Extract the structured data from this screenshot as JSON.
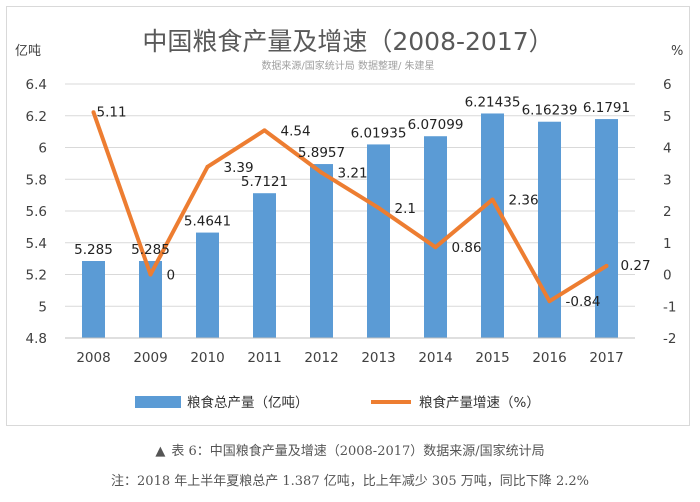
{
  "chart_data": {
    "type": "bar+line",
    "title": "中国粮食产量及增速（2008-2017）",
    "subtitle": "数据来源/国家统计局 数据整理/ 朱建星",
    "left_unit": "亿吨",
    "right_unit": "%",
    "categories": [
      "2008",
      "2009",
      "2010",
      "2011",
      "2012",
      "2013",
      "2014",
      "2015",
      "2016",
      "2017"
    ],
    "bar_series": {
      "name": "粮食总产量（亿吨）",
      "color": "#5b9bd5",
      "values": [
        5.285,
        5.285,
        5.4641,
        5.7121,
        5.8957,
        6.01935,
        6.07099,
        6.21435,
        6.16239,
        6.1791
      ],
      "labels": [
        "5.285",
        "5.285",
        "5.4641",
        "5.7121",
        "5.8957",
        "6.01935",
        "6.07099",
        "6.21435",
        "6.16239",
        "6.1791"
      ]
    },
    "line_series": {
      "name": "粮食产量增速（%）",
      "color": "#ed7d31",
      "values": [
        5.11,
        0,
        3.39,
        4.54,
        3.21,
        2.1,
        0.86,
        2.36,
        -0.84,
        0.27
      ],
      "labels": [
        "5.11",
        "0",
        "3.39",
        "4.54",
        "3.21",
        "2.1",
        "0.86",
        "2.36",
        "-0.84",
        "0.27"
      ]
    },
    "left_axis": {
      "min": 4.8,
      "max": 6.4,
      "step": 0.2,
      "ticks": [
        "4.8",
        "5",
        "5.2",
        "5.4",
        "5.6",
        "5.8",
        "6",
        "6.2",
        "6.4"
      ]
    },
    "right_axis": {
      "min": -2,
      "max": 6,
      "step": 1,
      "ticks": [
        "-2",
        "-1",
        "0",
        "1",
        "2",
        "3",
        "4",
        "5",
        "6"
      ]
    },
    "grid": true,
    "legend": "bottom"
  },
  "caption": {
    "marker": "▲",
    "text": "表 6：中国粮食产量及增速（2008-2017）数据来源/国家统计局"
  },
  "note": "注：2018 年上半年夏粮总产 1.387 亿吨，比上年减少 305 万吨，同比下降 2.2%"
}
